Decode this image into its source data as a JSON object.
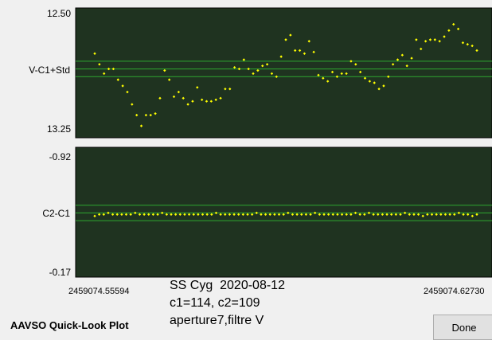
{
  "footer": {
    "title": "AAVSO Quick-Look Plot",
    "done_label": "Done"
  },
  "observation": {
    "line1": "SS Cyg  2020-08-12",
    "line2": "c1=114, c2=109",
    "line3": "aperture7,filtre V"
  },
  "colors": {
    "plot_bg": "#1f3320",
    "point": "#ffff00",
    "guide": "#2fa82f",
    "frame": "#000000"
  },
  "chart_data": [
    {
      "type": "scatter",
      "ylabel": "V-C1+Std",
      "ylim": [
        12.5,
        13.25
      ],
      "ylim_labels": [
        "12.50",
        "13.25"
      ],
      "y_inverted": true,
      "xlim": [
        2459074.55594,
        2459074.6273
      ],
      "xlim_labels": [
        "2459074.55594",
        "2459074.62730"
      ],
      "guides": [
        12.81,
        12.86,
        12.91
      ],
      "y": [
        12.76,
        12.83,
        12.89,
        12.86,
        12.86,
        12.93,
        12.97,
        13.01,
        13.09,
        13.16,
        13.23,
        13.16,
        13.16,
        13.15,
        13.05,
        12.87,
        12.93,
        13.04,
        13.01,
        13.05,
        13.09,
        13.07,
        12.98,
        13.06,
        13.07,
        13.07,
        13.06,
        13.05,
        12.99,
        12.99,
        12.85,
        12.86,
        12.8,
        12.86,
        12.89,
        12.87,
        12.84,
        12.83,
        12.89,
        12.91,
        12.78,
        12.67,
        12.64,
        12.74,
        12.74,
        12.76,
        12.68,
        12.75,
        12.9,
        12.92,
        12.94,
        12.88,
        12.91,
        12.89,
        12.89,
        12.81,
        12.83,
        12.88,
        12.92,
        12.94,
        12.95,
        12.99,
        12.97,
        12.91,
        12.83,
        12.8,
        12.77,
        12.84,
        12.79,
        12.67,
        12.73,
        12.68,
        12.67,
        12.67,
        12.68,
        12.65,
        12.61,
        12.57,
        12.6,
        12.69,
        12.7,
        12.71,
        12.74
      ]
    },
    {
      "type": "scatter",
      "ylabel": "C2-C1",
      "ylim": [
        -0.92,
        -0.17
      ],
      "ylim_labels": [
        "-0.92",
        "-0.17"
      ],
      "y_inverted": false,
      "xlim": [
        2459074.55594,
        2459074.6273
      ],
      "xlim_labels": [
        "2459074.55594",
        "2459074.62730"
      ],
      "guides": [
        -0.51,
        -0.56,
        -0.61
      ],
      "y": [
        -0.58,
        -0.57,
        -0.57,
        -0.56,
        -0.57,
        -0.57,
        -0.57,
        -0.57,
        -0.57,
        -0.56,
        -0.57,
        -0.57,
        -0.57,
        -0.57,
        -0.57,
        -0.56,
        -0.57,
        -0.57,
        -0.57,
        -0.57,
        -0.57,
        -0.57,
        -0.57,
        -0.57,
        -0.57,
        -0.57,
        -0.57,
        -0.56,
        -0.57,
        -0.57,
        -0.57,
        -0.57,
        -0.57,
        -0.57,
        -0.57,
        -0.57,
        -0.56,
        -0.57,
        -0.57,
        -0.57,
        -0.57,
        -0.57,
        -0.57,
        -0.56,
        -0.57,
        -0.57,
        -0.57,
        -0.57,
        -0.57,
        -0.56,
        -0.57,
        -0.57,
        -0.57,
        -0.57,
        -0.57,
        -0.57,
        -0.57,
        -0.57,
        -0.56,
        -0.57,
        -0.57,
        -0.56,
        -0.57,
        -0.57,
        -0.57,
        -0.57,
        -0.57,
        -0.57,
        -0.57,
        -0.56,
        -0.57,
        -0.57,
        -0.57,
        -0.58,
        -0.57,
        -0.57,
        -0.57,
        -0.57,
        -0.57,
        -0.57,
        -0.57,
        -0.56,
        -0.57,
        -0.57,
        -0.58,
        -0.57
      ]
    }
  ]
}
